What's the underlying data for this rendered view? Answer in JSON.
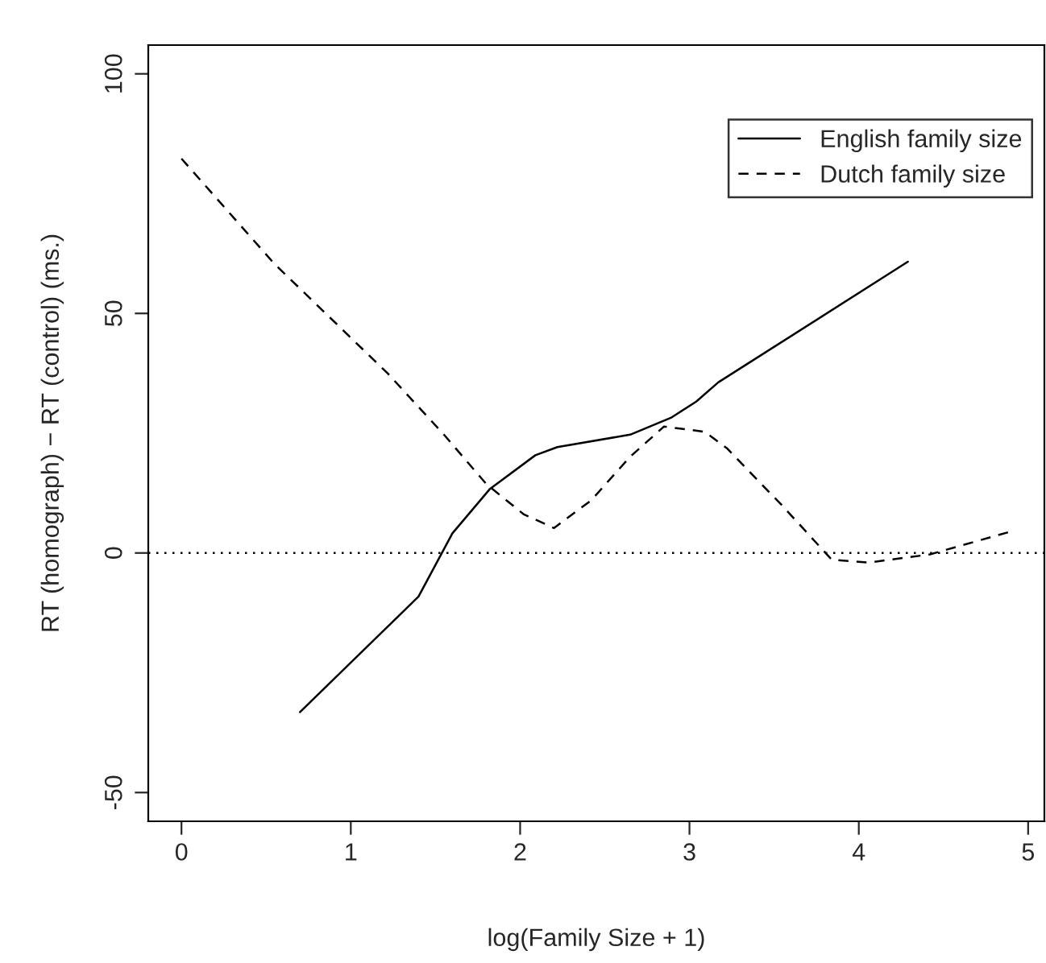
{
  "chart_data": {
    "type": "line",
    "xlabel": "log(Family Size + 1)",
    "ylabel": "RT (homograph) − RT (control) (ms.)",
    "xlim": [
      -0.196,
      5.096
    ],
    "ylim": [
      -56,
      106
    ],
    "xticks": [
      0,
      1,
      2,
      3,
      4,
      5
    ],
    "yticks": [
      -50,
      0,
      50,
      100
    ],
    "grid": false,
    "legend": "top right",
    "series": [
      {
        "name": "English family size",
        "color": "#000000",
        "line_style": "solid",
        "x": [
          0.7,
          1.2,
          1.4,
          1.6,
          1.82,
          2.09,
          2.22,
          2.65,
          2.89,
          3.04,
          3.17,
          4.29
        ],
        "values": [
          -33.2,
          -16.0,
          -9.1,
          4.1,
          13.3,
          20.4,
          22.1,
          24.7,
          28.2,
          31.6,
          35.6,
          60.8
        ]
      },
      {
        "name": "Dutch family size",
        "color": "#000000",
        "line_style": "dashed",
        "x": [
          0.0,
          0.55,
          1.22,
          1.55,
          1.8,
          2.02,
          2.2,
          2.42,
          2.65,
          2.85,
          3.09,
          3.22,
          3.55,
          3.84,
          4.06,
          4.42,
          4.89
        ],
        "values": [
          82.3,
          60.3,
          37.4,
          24.7,
          14.4,
          8.1,
          5.2,
          11.0,
          20.1,
          26.4,
          25.3,
          21.9,
          9.8,
          -1.4,
          -2.0,
          -0.3,
          4.4
        ]
      }
    ],
    "ref_lines": [
      {
        "axis": "y",
        "value": 0,
        "line_style": "dotted",
        "color": "#000000"
      }
    ]
  }
}
